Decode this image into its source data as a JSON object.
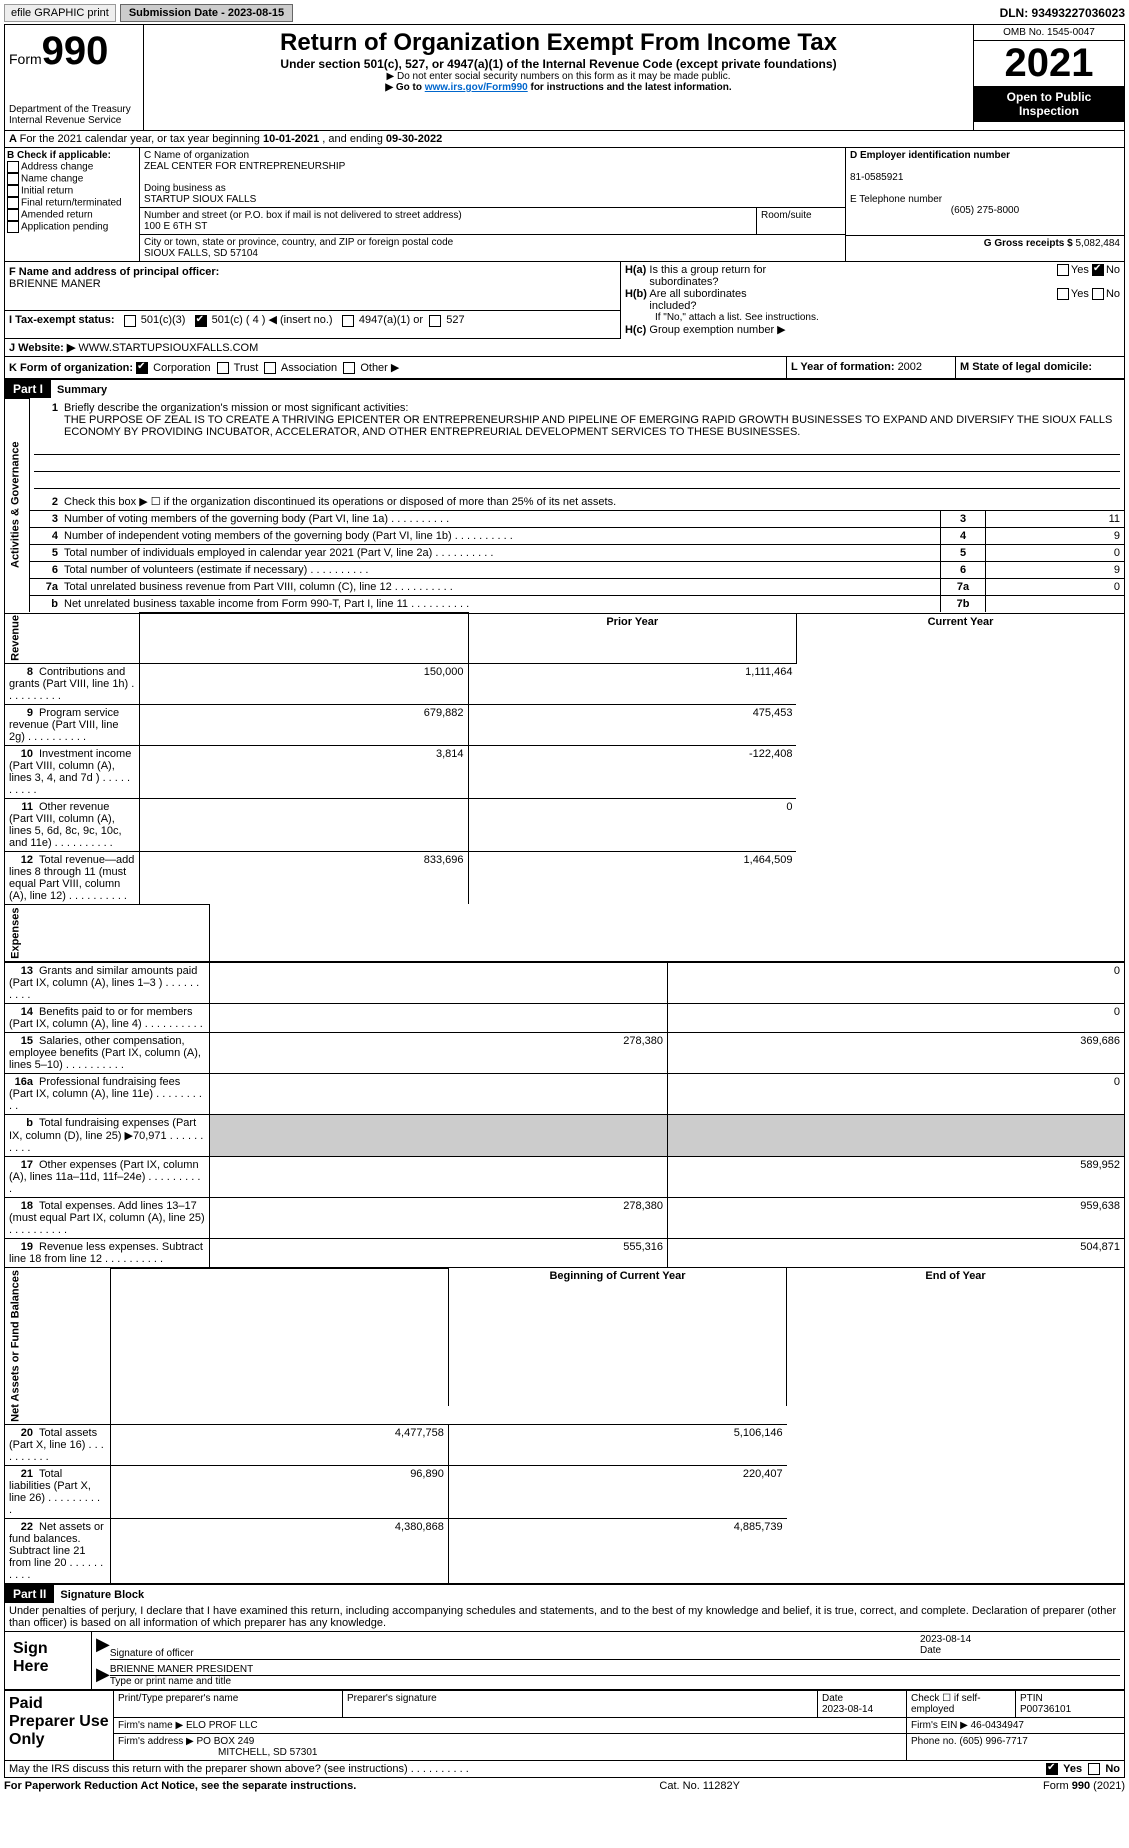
{
  "topbar": {
    "efile": "efile GRAPHIC print",
    "submission": "Submission Date - 2023-08-15",
    "dln": "DLN: 93493227036023"
  },
  "header": {
    "form_label": "Form",
    "form_num": "990",
    "title": "Return of Organization Exempt From Income Tax",
    "subtitle": "Under section 501(c), 527, or 4947(a)(1) of the Internal Revenue Code (except private foundations)",
    "note1": "▶ Do not enter social security numbers on this form as it may be made public.",
    "note2_pre": "▶ Go to ",
    "note2_link": "www.irs.gov/Form990",
    "note2_post": " for instructions and the latest information.",
    "dept": "Department of the Treasury",
    "irs": "Internal Revenue Service",
    "omb": "OMB No. 1545-0047",
    "year": "2021",
    "open": "Open to Public Inspection"
  },
  "rowA": {
    "text_pre": "For the 2021 calendar year, or tax year beginning ",
    "begin": "10-01-2021",
    "mid": " , and ending ",
    "end": "09-30-2022"
  },
  "boxB": {
    "title": "B Check if applicable:",
    "items": [
      "Address change",
      "Name change",
      "Initial return",
      "Final return/terminated",
      "Amended return",
      "Application pending"
    ]
  },
  "boxC": {
    "c_label": "C Name of organization",
    "org": "ZEAL CENTER FOR ENTREPRENEURSHIP",
    "dba_label": "Doing business as",
    "dba": "STARTUP SIOUX FALLS",
    "addr_label": "Number and street (or P.O. box if mail is not delivered to street address)",
    "room_label": "Room/suite",
    "addr": "100 E 6TH ST",
    "city_label": "City or town, state or province, country, and ZIP or foreign postal code",
    "city": "SIOUX FALLS, SD  57104"
  },
  "boxD": {
    "d_label": "D Employer identification number",
    "ein": "81-0585921",
    "e_label": "E Telephone number",
    "phone": "(605) 275-8000",
    "g_label": "G Gross receipts $ ",
    "gross": "5,082,484"
  },
  "boxF": {
    "label": "F  Name and address of principal officer:",
    "name": "BRIENNE MANER"
  },
  "boxH": {
    "ha": "H(a)  Is this a group return for subordinates?",
    "hb": "H(b)  Are all subordinates included?",
    "hb_note": "If \"No,\" attach a list. See instructions.",
    "hc": "H(c)  Group exemption number ▶",
    "yes": "Yes",
    "no": "No"
  },
  "rowI": {
    "label": "I    Tax-exempt status:",
    "opt1": "501(c)(3)",
    "opt2": "501(c) ( 4 ) ◀ (insert no.)",
    "opt3": "4947(a)(1) or",
    "opt4": "527"
  },
  "rowJ": {
    "label": "J    Website: ▶ ",
    "val": "WWW.STARTUPSIOUXFALLS.COM"
  },
  "rowK": {
    "label": "K Form of organization: ",
    "opts": [
      "Corporation",
      "Trust",
      "Association",
      "Other ▶"
    ],
    "l_label": "L Year of formation: ",
    "l_val": "2002",
    "m_label": "M State of legal domicile:"
  },
  "part1": {
    "hdr": "Part I",
    "title": "Summary",
    "side1": "Activities & Governance",
    "side2": "Revenue",
    "side3": "Expenses",
    "side4": "Net Assets or Fund Balances",
    "q1": "Briefly describe the organization's mission or most significant activities:",
    "mission": "THE PURPOSE OF ZEAL IS TO CREATE A THRIVING EPICENTER OR ENTREPRENEURSHIP AND PIPELINE OF EMERGING RAPID GROWTH BUSINESSES TO EXPAND AND DIVERSIFY THE SIOUX FALLS ECONOMY BY PROVIDING INCUBATOR, ACCELERATOR, AND OTHER ENTREPREURIAL DEVELOPMENT SERVICES TO THESE BUSINESSES.",
    "q2": "Check this box ▶ ☐  if the organization discontinued its operations or disposed of more than 25% of its net assets.",
    "rows_gov": [
      {
        "n": "3",
        "t": "Number of voting members of the governing body (Part VI, line 1a)",
        "b": "3",
        "v": "11"
      },
      {
        "n": "4",
        "t": "Number of independent voting members of the governing body (Part VI, line 1b)",
        "b": "4",
        "v": "9"
      },
      {
        "n": "5",
        "t": "Total number of individuals employed in calendar year 2021 (Part V, line 2a)",
        "b": "5",
        "v": "0"
      },
      {
        "n": "6",
        "t": "Total number of volunteers (estimate if necessary)",
        "b": "6",
        "v": "9"
      },
      {
        "n": "7a",
        "t": "Total unrelated business revenue from Part VIII, column (C), line 12",
        "b": "7a",
        "v": "0"
      },
      {
        "n": "b",
        "t": "Net unrelated business taxable income from Form 990-T, Part I, line 11",
        "b": "7b",
        "v": ""
      }
    ],
    "col_prior": "Prior Year",
    "col_curr": "Current Year",
    "rows_rev": [
      {
        "n": "8",
        "t": "Contributions and grants (Part VIII, line 1h)",
        "p": "150,000",
        "c": "1,111,464"
      },
      {
        "n": "9",
        "t": "Program service revenue (Part VIII, line 2g)",
        "p": "679,882",
        "c": "475,453"
      },
      {
        "n": "10",
        "t": "Investment income (Part VIII, column (A), lines 3, 4, and 7d )",
        "p": "3,814",
        "c": "-122,408"
      },
      {
        "n": "11",
        "t": "Other revenue (Part VIII, column (A), lines 5, 6d, 8c, 9c, 10c, and 11e)",
        "p": "",
        "c": "0"
      },
      {
        "n": "12",
        "t": "Total revenue—add lines 8 through 11 (must equal Part VIII, column (A), line 12)",
        "p": "833,696",
        "c": "1,464,509"
      }
    ],
    "rows_exp": [
      {
        "n": "13",
        "t": "Grants and similar amounts paid (Part IX, column (A), lines 1–3 )",
        "p": "",
        "c": "0"
      },
      {
        "n": "14",
        "t": "Benefits paid to or for members (Part IX, column (A), line 4)",
        "p": "",
        "c": "0"
      },
      {
        "n": "15",
        "t": "Salaries, other compensation, employee benefits (Part IX, column (A), lines 5–10)",
        "p": "278,380",
        "c": "369,686"
      },
      {
        "n": "16a",
        "t": "Professional fundraising fees (Part IX, column (A), line 11e)",
        "p": "",
        "c": "0"
      },
      {
        "n": "b",
        "t": "Total fundraising expenses (Part IX, column (D), line 25) ▶70,971",
        "p": "SHADE",
        "c": "SHADE"
      },
      {
        "n": "17",
        "t": "Other expenses (Part IX, column (A), lines 11a–11d, 11f–24e)",
        "p": "",
        "c": "589,952"
      },
      {
        "n": "18",
        "t": "Total expenses. Add lines 13–17 (must equal Part IX, column (A), line 25)",
        "p": "278,380",
        "c": "959,638"
      },
      {
        "n": "19",
        "t": "Revenue less expenses. Subtract line 18 from line 12",
        "p": "555,316",
        "c": "504,871"
      }
    ],
    "col_beg": "Beginning of Current Year",
    "col_end": "End of Year",
    "rows_net": [
      {
        "n": "20",
        "t": "Total assets (Part X, line 16)",
        "p": "4,477,758",
        "c": "5,106,146"
      },
      {
        "n": "21",
        "t": "Total liabilities (Part X, line 26)",
        "p": "96,890",
        "c": "220,407"
      },
      {
        "n": "22",
        "t": "Net assets or fund balances. Subtract line 21 from line 20",
        "p": "4,380,868",
        "c": "4,885,739"
      }
    ]
  },
  "part2": {
    "hdr": "Part II",
    "title": "Signature Block",
    "decl": "Under penalties of perjury, I declare that I have examined this return, including accompanying schedules and statements, and to the best of my knowledge and belief, it is true, correct, and complete. Declaration of preparer (other than officer) is based on all information of which preparer has any knowledge.",
    "sign_here": "Sign Here",
    "sig_off": "Signature of officer",
    "date": "Date",
    "sig_date": "2023-08-14",
    "name_title": "BRIENNE MANER  PRESIDENT",
    "type_name": "Type or print name and title",
    "paid": "Paid Preparer Use Only",
    "prep_name_lbl": "Print/Type preparer's name",
    "prep_sig_lbl": "Preparer's signature",
    "prep_date_lbl": "Date",
    "prep_date": "2023-08-14",
    "self_emp": "Check ☐  if self-employed",
    "ptin_lbl": "PTIN",
    "ptin": "P00736101",
    "firm_name_lbl": "Firm's name     ▶ ",
    "firm_name": "ELO PROF LLC",
    "firm_ein_lbl": "Firm's EIN ▶ ",
    "firm_ein": "46-0434947",
    "firm_addr_lbl": "Firm's address ▶ ",
    "firm_addr1": "PO BOX 249",
    "firm_addr2": "MITCHELL, SD  57301",
    "phone_lbl": "Phone no. ",
    "phone": "(605) 996-7717",
    "may_irs": "May the IRS discuss this return with the preparer shown above? (see instructions)"
  },
  "footer": {
    "left": "For Paperwork Reduction Act Notice, see the separate instructions.",
    "mid": "Cat. No. 11282Y",
    "right": "Form 990 (2021)"
  }
}
